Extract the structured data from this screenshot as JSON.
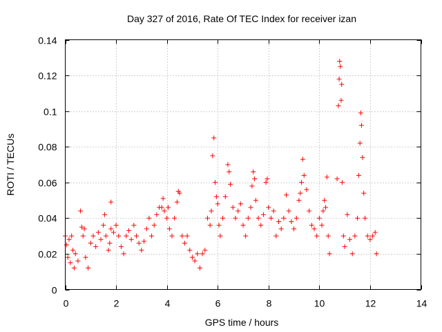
{
  "chart_data": {
    "type": "scatter",
    "title": "Day 327 of 2016, Rate Of TEC Index for receiver izan",
    "xlabel": "GPS time / hours",
    "ylabel": "ROTI / TECUs",
    "xlim": [
      0,
      14
    ],
    "ylim": [
      0,
      0.14
    ],
    "x_ticks": [
      0,
      2,
      4,
      6,
      8,
      10,
      12,
      14
    ],
    "x_tick_labels": [
      "0",
      "2",
      "4",
      "6",
      "8",
      "10",
      "12",
      "14"
    ],
    "y_ticks": [
      0,
      0.02,
      0.04,
      0.06,
      0.08,
      0.1,
      0.12,
      0.14
    ],
    "y_tick_labels": [
      "0",
      "0.02",
      "0.04",
      "0.06",
      "0.08",
      "0.1",
      "0.12",
      "0.14"
    ],
    "grid": true,
    "marker": "+",
    "marker_color": "#ff0000",
    "series": [
      {
        "name": "ROTI",
        "points": [
          [
            0.0,
            0.03
          ],
          [
            0.05,
            0.025
          ],
          [
            0.1,
            0.018
          ],
          [
            0.15,
            0.028
          ],
          [
            0.2,
            0.015
          ],
          [
            0.25,
            0.03
          ],
          [
            0.3,
            0.022
          ],
          [
            0.35,
            0.012
          ],
          [
            0.4,
            0.02
          ],
          [
            0.5,
            0.016
          ],
          [
            0.6,
            0.044
          ],
          [
            0.65,
            0.035
          ],
          [
            0.7,
            0.03
          ],
          [
            0.75,
            0.034
          ],
          [
            0.8,
            0.018
          ],
          [
            0.9,
            0.012
          ],
          [
            1.0,
            0.026
          ],
          [
            1.1,
            0.03
          ],
          [
            1.2,
            0.024
          ],
          [
            1.3,
            0.032
          ],
          [
            1.4,
            0.028
          ],
          [
            1.5,
            0.036
          ],
          [
            1.55,
            0.042
          ],
          [
            1.6,
            0.03
          ],
          [
            1.7,
            0.022
          ],
          [
            1.75,
            0.026
          ],
          [
            1.8,
            0.034
          ],
          [
            1.8,
            0.049
          ],
          [
            1.9,
            0.032
          ],
          [
            2.0,
            0.036
          ],
          [
            2.1,
            0.03
          ],
          [
            2.2,
            0.024
          ],
          [
            2.3,
            0.02
          ],
          [
            2.4,
            0.03
          ],
          [
            2.5,
            0.033
          ],
          [
            2.6,
            0.028
          ],
          [
            2.7,
            0.036
          ],
          [
            2.8,
            0.03
          ],
          [
            2.9,
            0.026
          ],
          [
            3.0,
            0.022
          ],
          [
            3.1,
            0.027
          ],
          [
            3.2,
            0.034
          ],
          [
            3.3,
            0.04
          ],
          [
            3.4,
            0.03
          ],
          [
            3.5,
            0.036
          ],
          [
            3.6,
            0.042
          ],
          [
            3.7,
            0.046
          ],
          [
            3.8,
            0.046
          ],
          [
            3.85,
            0.051
          ],
          [
            3.9,
            0.044
          ],
          [
            4.0,
            0.04
          ],
          [
            4.05,
            0.046
          ],
          [
            4.1,
            0.034
          ],
          [
            4.2,
            0.03
          ],
          [
            4.3,
            0.04
          ],
          [
            4.4,
            0.049
          ],
          [
            4.45,
            0.055
          ],
          [
            4.5,
            0.054
          ],
          [
            4.6,
            0.03
          ],
          [
            4.7,
            0.026
          ],
          [
            4.8,
            0.03
          ],
          [
            4.9,
            0.022
          ],
          [
            5.0,
            0.018
          ],
          [
            5.1,
            0.016
          ],
          [
            5.2,
            0.02
          ],
          [
            5.3,
            0.012
          ],
          [
            5.4,
            0.02
          ],
          [
            5.5,
            0.022
          ],
          [
            5.6,
            0.04
          ],
          [
            5.7,
            0.036
          ],
          [
            5.75,
            0.044
          ],
          [
            5.8,
            0.075
          ],
          [
            5.85,
            0.085
          ],
          [
            5.9,
            0.06
          ],
          [
            5.95,
            0.052
          ],
          [
            6.0,
            0.048
          ],
          [
            6.05,
            0.036
          ],
          [
            6.1,
            0.03
          ],
          [
            6.2,
            0.04
          ],
          [
            6.3,
            0.052
          ],
          [
            6.4,
            0.07
          ],
          [
            6.45,
            0.066
          ],
          [
            6.5,
            0.059
          ],
          [
            6.6,
            0.046
          ],
          [
            6.7,
            0.04
          ],
          [
            6.8,
            0.044
          ],
          [
            6.9,
            0.048
          ],
          [
            7.0,
            0.036
          ],
          [
            7.1,
            0.03
          ],
          [
            7.2,
            0.04
          ],
          [
            7.3,
            0.046
          ],
          [
            7.35,
            0.058
          ],
          [
            7.4,
            0.066
          ],
          [
            7.45,
            0.062
          ],
          [
            7.5,
            0.05
          ],
          [
            7.6,
            0.04
          ],
          [
            7.7,
            0.036
          ],
          [
            7.8,
            0.042
          ],
          [
            7.9,
            0.06
          ],
          [
            7.95,
            0.062
          ],
          [
            8.0,
            0.046
          ],
          [
            8.1,
            0.04
          ],
          [
            8.2,
            0.044
          ],
          [
            8.3,
            0.03
          ],
          [
            8.4,
            0.038
          ],
          [
            8.5,
            0.034
          ],
          [
            8.6,
            0.04
          ],
          [
            8.7,
            0.053
          ],
          [
            8.8,
            0.044
          ],
          [
            8.9,
            0.038
          ],
          [
            9.0,
            0.034
          ],
          [
            9.1,
            0.04
          ],
          [
            9.2,
            0.05
          ],
          [
            9.25,
            0.054
          ],
          [
            9.3,
            0.06
          ],
          [
            9.35,
            0.073
          ],
          [
            9.4,
            0.064
          ],
          [
            9.5,
            0.056
          ],
          [
            9.6,
            0.044
          ],
          [
            9.7,
            0.036
          ],
          [
            9.8,
            0.034
          ],
          [
            9.9,
            0.03
          ],
          [
            10.0,
            0.04
          ],
          [
            10.1,
            0.036
          ],
          [
            10.15,
            0.044
          ],
          [
            10.2,
            0.05
          ],
          [
            10.25,
            0.046
          ],
          [
            10.3,
            0.063
          ],
          [
            10.35,
            0.03
          ],
          [
            10.4,
            0.02
          ],
          [
            10.7,
            0.062
          ],
          [
            10.75,
            0.103
          ],
          [
            10.78,
            0.118
          ],
          [
            10.8,
            0.128
          ],
          [
            10.83,
            0.125
          ],
          [
            10.86,
            0.106
          ],
          [
            10.88,
            0.115
          ],
          [
            10.9,
            0.06
          ],
          [
            10.95,
            0.03
          ],
          [
            11.0,
            0.024
          ],
          [
            11.1,
            0.042
          ],
          [
            11.2,
            0.028
          ],
          [
            11.3,
            0.02
          ],
          [
            11.4,
            0.03
          ],
          [
            11.5,
            0.04
          ],
          [
            11.55,
            0.064
          ],
          [
            11.6,
            0.082
          ],
          [
            11.63,
            0.099
          ],
          [
            11.66,
            0.092
          ],
          [
            11.7,
            0.074
          ],
          [
            11.75,
            0.054
          ],
          [
            11.8,
            0.04
          ],
          [
            11.9,
            0.03
          ],
          [
            12.0,
            0.028
          ],
          [
            12.1,
            0.03
          ],
          [
            12.2,
            0.032
          ],
          [
            12.25,
            0.02
          ]
        ]
      }
    ]
  }
}
